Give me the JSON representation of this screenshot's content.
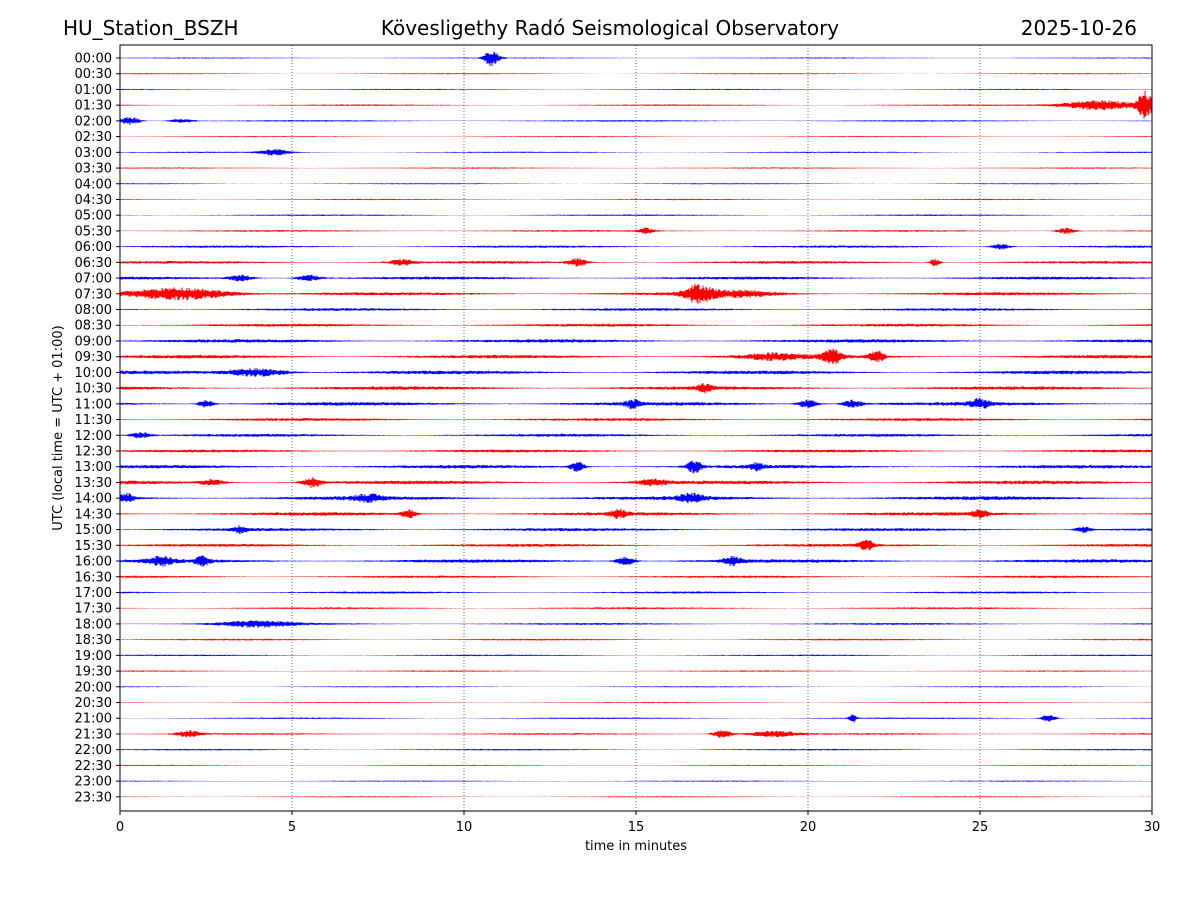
{
  "header": {
    "station": "HU_Station_BSZH",
    "observatory": "Kövesligethy Radó Seismological Observatory",
    "date": "2025-10-26"
  },
  "chart_data": {
    "type": "line",
    "title": "Kövesligethy Radó Seismological Observatory",
    "xlabel": "time in minutes",
    "ylabel": "UTC (local time = UTC + 01:00)",
    "xlim": [
      0,
      30
    ],
    "xticks": [
      0,
      5,
      10,
      15,
      20,
      25,
      30
    ],
    "xtick_labels": [
      "0",
      "5",
      "10",
      "15",
      "20",
      "25",
      "30"
    ],
    "grid": "vertical dotted at 5-minute ticks",
    "colors": [
      "#0000ff",
      "#ff0000"
    ],
    "row_labels": [
      "00:00",
      "00:30",
      "01:00",
      "01:30",
      "02:00",
      "02:30",
      "03:00",
      "03:30",
      "04:00",
      "04:30",
      "05:00",
      "05:30",
      "06:00",
      "06:30",
      "07:00",
      "07:30",
      "08:00",
      "08:30",
      "09:00",
      "09:30",
      "10:00",
      "10:30",
      "11:00",
      "11:30",
      "12:00",
      "12:30",
      "13:00",
      "13:30",
      "14:00",
      "14:30",
      "15:00",
      "15:30",
      "16:00",
      "16:30",
      "17:00",
      "17:30",
      "18:00",
      "18:30",
      "19:00",
      "19:30",
      "20:00",
      "20:30",
      "21:00",
      "21:30",
      "22:00",
      "22:30",
      "23:00",
      "23:30"
    ],
    "row_noise": [
      0.6,
      0.6,
      0.6,
      0.8,
      0.8,
      0.6,
      0.7,
      0.7,
      0.6,
      0.7,
      0.8,
      0.9,
      1.2,
      1.4,
      1.5,
      1.6,
      1.4,
      1.5,
      1.8,
      1.8,
      1.9,
      1.8,
      1.9,
      1.5,
      1.5,
      1.5,
      1.8,
      1.9,
      2.0,
      1.8,
      1.6,
      1.5,
      1.8,
      1.2,
      1.1,
      1.0,
      1.0,
      0.9,
      0.8,
      0.7,
      0.6,
      0.6,
      0.8,
      0.9,
      0.8,
      0.6,
      0.6,
      0.6
    ],
    "events": [
      {
        "row": 0,
        "minute": 10.8,
        "amp": 8,
        "dur": 0.3
      },
      {
        "row": 3,
        "minute": 28.5,
        "amp": 5,
        "dur": 1.5
      },
      {
        "row": 3,
        "minute": 29.8,
        "amp": 13,
        "dur": 0.3
      },
      {
        "row": 4,
        "minute": 0.3,
        "amp": 4,
        "dur": 0.4
      },
      {
        "row": 4,
        "minute": 1.8,
        "amp": 2,
        "dur": 0.5
      },
      {
        "row": 6,
        "minute": 4.5,
        "amp": 3,
        "dur": 0.6
      },
      {
        "row": 11,
        "minute": 15.3,
        "amp": 3,
        "dur": 0.3
      },
      {
        "row": 11,
        "minute": 27.5,
        "amp": 3,
        "dur": 0.4
      },
      {
        "row": 12,
        "minute": 25.6,
        "amp": 3,
        "dur": 0.4
      },
      {
        "row": 13,
        "minute": 8.2,
        "amp": 3,
        "dur": 0.5
      },
      {
        "row": 13,
        "minute": 13.3,
        "amp": 4,
        "dur": 0.4
      },
      {
        "row": 13,
        "minute": 23.7,
        "amp": 4,
        "dur": 0.2
      },
      {
        "row": 14,
        "minute": 3.5,
        "amp": 3,
        "dur": 0.5
      },
      {
        "row": 14,
        "minute": 5.5,
        "amp": 3,
        "dur": 0.5
      },
      {
        "row": 15,
        "minute": 1.8,
        "amp": 6,
        "dur": 2.0
      },
      {
        "row": 15,
        "minute": 16.8,
        "amp": 8,
        "dur": 0.6
      },
      {
        "row": 15,
        "minute": 18.0,
        "amp": 3,
        "dur": 1.5
      },
      {
        "row": 19,
        "minute": 19.0,
        "amp": 3,
        "dur": 1.2
      },
      {
        "row": 19,
        "minute": 20.7,
        "amp": 7,
        "dur": 0.4
      },
      {
        "row": 19,
        "minute": 22.0,
        "amp": 6,
        "dur": 0.3
      },
      {
        "row": 20,
        "minute": 4.0,
        "amp": 4,
        "dur": 1.2
      },
      {
        "row": 21,
        "minute": 17.0,
        "amp": 4,
        "dur": 0.3
      },
      {
        "row": 22,
        "minute": 2.5,
        "amp": 4,
        "dur": 0.3
      },
      {
        "row": 22,
        "minute": 14.9,
        "amp": 4,
        "dur": 0.3
      },
      {
        "row": 22,
        "minute": 20.0,
        "amp": 4,
        "dur": 0.4
      },
      {
        "row": 22,
        "minute": 21.3,
        "amp": 4,
        "dur": 0.4
      },
      {
        "row": 22,
        "minute": 25.0,
        "amp": 4,
        "dur": 0.4
      },
      {
        "row": 24,
        "minute": 0.6,
        "amp": 3,
        "dur": 0.4
      },
      {
        "row": 26,
        "minute": 13.3,
        "amp": 5,
        "dur": 0.3
      },
      {
        "row": 26,
        "minute": 16.7,
        "amp": 6,
        "dur": 0.3
      },
      {
        "row": 26,
        "minute": 18.5,
        "amp": 3,
        "dur": 0.3
      },
      {
        "row": 27,
        "minute": 5.6,
        "amp": 5,
        "dur": 0.4
      },
      {
        "row": 27,
        "minute": 2.7,
        "amp": 3,
        "dur": 0.5
      },
      {
        "row": 27,
        "minute": 15.5,
        "amp": 3,
        "dur": 0.6
      },
      {
        "row": 28,
        "minute": 0.2,
        "amp": 4,
        "dur": 0.3
      },
      {
        "row": 28,
        "minute": 7.2,
        "amp": 3,
        "dur": 0.6
      },
      {
        "row": 28,
        "minute": 16.6,
        "amp": 4,
        "dur": 0.5
      },
      {
        "row": 29,
        "minute": 8.4,
        "amp": 4,
        "dur": 0.3
      },
      {
        "row": 29,
        "minute": 14.5,
        "amp": 4,
        "dur": 0.3
      },
      {
        "row": 29,
        "minute": 25.0,
        "amp": 4,
        "dur": 0.3
      },
      {
        "row": 30,
        "minute": 3.5,
        "amp": 3,
        "dur": 0.3
      },
      {
        "row": 30,
        "minute": 28.0,
        "amp": 3,
        "dur": 0.3
      },
      {
        "row": 31,
        "minute": 21.7,
        "amp": 5,
        "dur": 0.3
      },
      {
        "row": 32,
        "minute": 1.2,
        "amp": 4,
        "dur": 0.5
      },
      {
        "row": 32,
        "minute": 2.4,
        "amp": 4,
        "dur": 0.3
      },
      {
        "row": 32,
        "minute": 14.7,
        "amp": 4,
        "dur": 0.4
      },
      {
        "row": 32,
        "minute": 17.8,
        "amp": 4,
        "dur": 0.4
      },
      {
        "row": 36,
        "minute": 4.0,
        "amp": 3,
        "dur": 1.5
      },
      {
        "row": 42,
        "minute": 21.3,
        "amp": 4,
        "dur": 0.15
      },
      {
        "row": 42,
        "minute": 27.0,
        "amp": 4,
        "dur": 0.3
      },
      {
        "row": 43,
        "minute": 2.0,
        "amp": 3,
        "dur": 0.5
      },
      {
        "row": 43,
        "minute": 17.5,
        "amp": 4,
        "dur": 0.4
      },
      {
        "row": 43,
        "minute": 19.0,
        "amp": 3,
        "dur": 1.0
      }
    ]
  }
}
